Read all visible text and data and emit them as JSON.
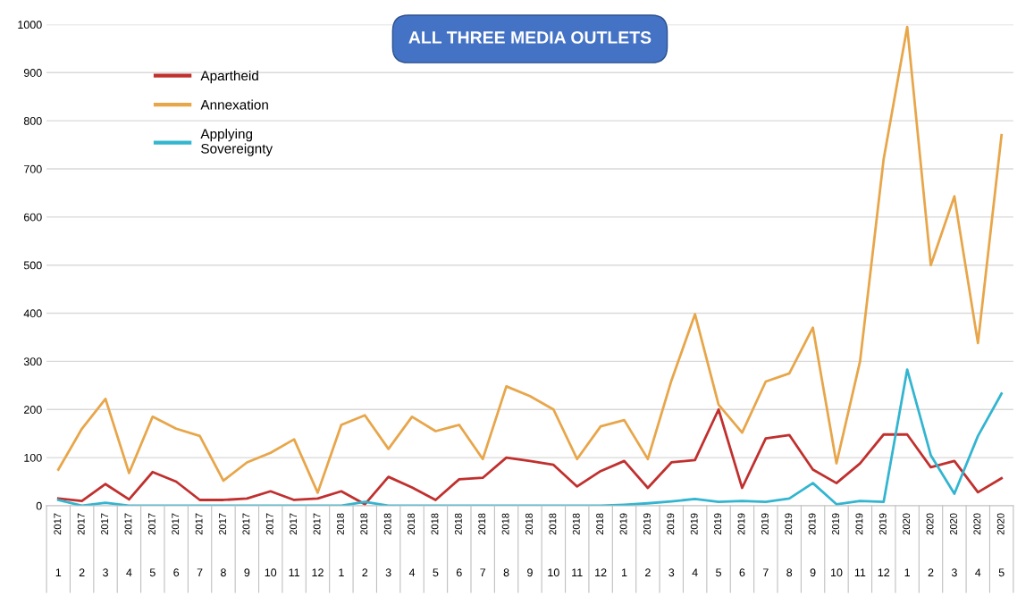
{
  "chart_data": {
    "type": "line",
    "title": "ALL THREE MEDIA OUTLETS",
    "categories": [
      "2017\n1",
      "2017\n2",
      "2017\n3",
      "2017\n4",
      "2017\n5",
      "2017\n6",
      "2017\n7",
      "2017\n8",
      "2017\n9",
      "2017\n10",
      "2017\n11",
      "2017\n12",
      "2018\n1",
      "2018\n2",
      "2018\n3",
      "2018\n4",
      "2018\n5",
      "2018\n6",
      "2018\n7",
      "2018\n8",
      "2018\n9",
      "2018\n10",
      "2018\n11",
      "2018\n12",
      "2019\n1",
      "2019\n2",
      "2019\n3",
      "2019\n4",
      "2019\n5",
      "2019\n6",
      "2019\n7",
      "2019\n8",
      "2019\n9",
      "2019\n10",
      "2019\n11",
      "2019\n12",
      "2020\n1",
      "2020\n2",
      "2020\n3",
      "2020\n4",
      "2020\n5"
    ],
    "series": [
      {
        "name": "Apartheid",
        "color": "#c0302e",
        "values": [
          15,
          10,
          45,
          13,
          70,
          50,
          12,
          12,
          15,
          30,
          12,
          15,
          30,
          3,
          60,
          38,
          12,
          55,
          58,
          100,
          93,
          85,
          40,
          72,
          93,
          37,
          90,
          95,
          200,
          37,
          140,
          147,
          75,
          47,
          88,
          148,
          148,
          80,
          93,
          28,
          57
        ]
      },
      {
        "name": "Annexation",
        "color": "#e8a64a",
        "values": [
          75,
          160,
          222,
          68,
          185,
          160,
          145,
          52,
          90,
          110,
          138,
          27,
          168,
          188,
          118,
          185,
          155,
          168,
          97,
          248,
          228,
          200,
          97,
          165,
          178,
          97,
          260,
          398,
          210,
          152,
          258,
          275,
          370,
          88,
          300,
          720,
          995,
          500,
          643,
          338,
          770
        ]
      },
      {
        "name": "Applying\nSovereignty",
        "color": "#33b5d0",
        "values": [
          12,
          0,
          6,
          0,
          0,
          0,
          0,
          0,
          0,
          0,
          0,
          0,
          0,
          8,
          0,
          0,
          0,
          0,
          0,
          0,
          0,
          0,
          0,
          0,
          2,
          5,
          9,
          14,
          8,
          10,
          8,
          15,
          47,
          3,
          10,
          8,
          283,
          105,
          25,
          145,
          233
        ]
      }
    ],
    "ylim": [
      0,
      1000
    ],
    "yticks": [
      0,
      100,
      200,
      300,
      400,
      500,
      600,
      700,
      800,
      900,
      1000
    ],
    "grid": "y",
    "legend": "top left",
    "marker": "none",
    "line_style": "solid"
  }
}
